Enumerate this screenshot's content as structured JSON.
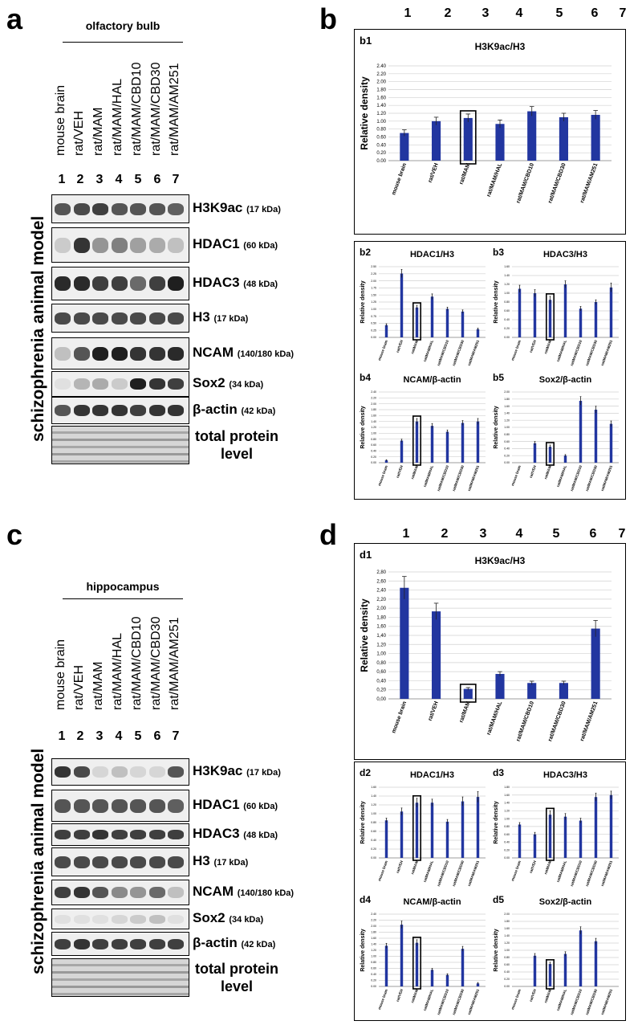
{
  "panels": {
    "a": "a",
    "b": "b",
    "c": "c",
    "d": "d"
  },
  "lane_numbers": [
    "1",
    "2",
    "3",
    "4",
    "5",
    "6",
    "7"
  ],
  "lane_labels": [
    "mouse brain",
    "rat/VEH",
    "rat/MAM",
    "rat/MAM/HAL",
    "rat/MAM/CBD10",
    "rat/MAM/CBD30",
    "rat/MAM/AM251"
  ],
  "side_label": "schizophrenia animal model",
  "top": {
    "tissue": "olfactory bulb"
  },
  "bottom": {
    "tissue": "hippocampus"
  },
  "blots": [
    {
      "name": "H3K9ac",
      "kda": "(17 kDa)"
    },
    {
      "name": "HDAC1",
      "kda": "(60 kDa)"
    },
    {
      "name": "HDAC3",
      "kda": "(48 kDa)"
    },
    {
      "name": "H3",
      "kda": "(17 kDa)"
    },
    {
      "name": "NCAM",
      "kda": "(140/180 kDa)"
    },
    {
      "name": "Sox2",
      "kda": "(34 kDa)"
    },
    {
      "name": "β-actin",
      "kda": "(42 kDa)"
    },
    {
      "name": "total protein",
      "kda": "level"
    }
  ],
  "band_intensity": {
    "top": [
      [
        0.7,
        0.75,
        0.8,
        0.7,
        0.7,
        0.7,
        0.65
      ],
      [
        0.15,
        0.85,
        0.4,
        0.5,
        0.35,
        0.3,
        0.2
      ],
      [
        0.9,
        0.9,
        0.8,
        0.8,
        0.6,
        0.8,
        0.95
      ],
      [
        0.75,
        0.75,
        0.75,
        0.75,
        0.75,
        0.75,
        0.75
      ],
      [
        0.2,
        0.7,
        0.95,
        0.95,
        0.85,
        0.85,
        0.9
      ],
      [
        0.05,
        0.25,
        0.3,
        0.15,
        0.95,
        0.85,
        0.8
      ],
      [
        0.7,
        0.85,
        0.85,
        0.85,
        0.8,
        0.85,
        0.85
      ],
      [
        0.45,
        0.45,
        0.45,
        0.45,
        0.45,
        0.45,
        0.45
      ]
    ],
    "bottom": [
      [
        0.85,
        0.75,
        0.1,
        0.2,
        0.1,
        0.1,
        0.7
      ],
      [
        0.7,
        0.7,
        0.7,
        0.7,
        0.7,
        0.7,
        0.65
      ],
      [
        0.8,
        0.8,
        0.85,
        0.8,
        0.8,
        0.8,
        0.8
      ],
      [
        0.75,
        0.75,
        0.75,
        0.75,
        0.75,
        0.75,
        0.75
      ],
      [
        0.8,
        0.85,
        0.7,
        0.45,
        0.4,
        0.6,
        0.2
      ],
      [
        0.05,
        0.05,
        0.05,
        0.1,
        0.15,
        0.2,
        0.05
      ],
      [
        0.8,
        0.85,
        0.8,
        0.8,
        0.8,
        0.8,
        0.8
      ],
      [
        0.4,
        0.4,
        0.4,
        0.4,
        0.4,
        0.4,
        0.4
      ]
    ]
  },
  "chart_data": [
    {
      "id": "b1",
      "type": "bar",
      "title": "H3K9ac/H3",
      "ylabel": "Relative density",
      "ylim": [
        0,
        2.4
      ],
      "yticks": [
        "0.00",
        "0.20",
        "0.40",
        "0.60",
        "0.80",
        "1.00",
        "1.20",
        "1.40",
        "1.60",
        "1.80",
        "2.00",
        "2.20",
        "2.40"
      ],
      "categories": [
        "mouse brain",
        "rat/VEH",
        "rat/MAM",
        "rat/MAM/HAL",
        "rat/MAM/CBD10",
        "rat/MAM/CBD30",
        "rat/MAM/AM251"
      ],
      "values": [
        0.7,
        1.0,
        1.08,
        0.93,
        1.25,
        1.1,
        1.16
      ],
      "errors": [
        0.08,
        0.1,
        0.1,
        0.1,
        0.12,
        0.1,
        0.11
      ],
      "highlight": 2
    },
    {
      "id": "b2",
      "type": "bar",
      "title": "HDAC1/H3",
      "ylabel": "Relative density",
      "ylim": [
        0,
        2.6
      ],
      "yticks": [
        "0.00",
        "0.25",
        "0.50",
        "0.75",
        "1.00",
        "1.25",
        "1.50",
        "1.75",
        "2.00",
        "2.25",
        "2.50"
      ],
      "categories": [
        "mouse brain",
        "rat/VEH",
        "rat/MAM",
        "rat/MAM/HAL",
        "rat/MAM/CBD10",
        "rat/MAM/CBD30",
        "rat/MAM/AM251"
      ],
      "values": [
        0.45,
        2.35,
        1.1,
        1.5,
        1.05,
        0.95,
        0.3
      ],
      "errors": [
        0.05,
        0.15,
        0.08,
        0.1,
        0.06,
        0.06,
        0.04
      ],
      "highlight": 2
    },
    {
      "id": "b3",
      "type": "bar",
      "title": "HDAC3/H3",
      "ylabel": "Relative density",
      "ylim": [
        0,
        1.6
      ],
      "yticks": [
        "0.00",
        "0.20",
        "0.40",
        "0.60",
        "0.80",
        "1.00",
        "1.20",
        "1.40",
        "1.60"
      ],
      "categories": [
        "mouse brain",
        "rat/VEH",
        "rat/MAM",
        "rat/MAM/HAL",
        "rat/MAM/CBD10",
        "rat/MAM/CBD30",
        "rat/MAM/AM251"
      ],
      "values": [
        1.1,
        1.0,
        0.85,
        1.2,
        0.65,
        0.8,
        1.13
      ],
      "errors": [
        0.08,
        0.08,
        0.08,
        0.08,
        0.05,
        0.05,
        0.1
      ],
      "highlight": 2
    },
    {
      "id": "b4",
      "type": "bar",
      "title": "NCAM/β-actin",
      "ylabel": "Relative density",
      "ylim": [
        0,
        2.4
      ],
      "yticks": [
        "0.00",
        "0.20",
        "0.40",
        "0.60",
        "0.80",
        "1.00",
        "1.20",
        "1.40",
        "1.60",
        "1.80",
        "2.00",
        "2.20",
        "2.40"
      ],
      "categories": [
        "mouse brain",
        "rat/VEH",
        "rat/MAM",
        "rat/MAM/HAL",
        "rat/MAM/CBD10",
        "rat/MAM/CBD30",
        "rat/MAM/AM251"
      ],
      "values": [
        0.08,
        0.75,
        1.4,
        1.25,
        1.05,
        1.35,
        1.4
      ],
      "errors": [
        0.02,
        0.05,
        0.1,
        0.08,
        0.06,
        0.08,
        0.1
      ],
      "highlight": 2
    },
    {
      "id": "b5",
      "type": "bar",
      "title": "Sox2/β-actin",
      "ylabel": "Relative density",
      "ylim": [
        0,
        2.0
      ],
      "yticks": [
        "0.00",
        "0.20",
        "0.40",
        "0.60",
        "0.80",
        "1.00",
        "1.20",
        "1.40",
        "1.60",
        "1.80",
        "2.00"
      ],
      "categories": [
        "mouse brain",
        "rat/VEH",
        "rat/MAM",
        "rat/MAM/HAL",
        "rat/MAM/CBD10",
        "rat/MAM/CBD30",
        "rat/MAM/AM251"
      ],
      "values": [
        0,
        0.55,
        0.45,
        0.2,
        1.75,
        1.5,
        1.1
      ],
      "errors": [
        0,
        0.05,
        0.05,
        0.03,
        0.12,
        0.1,
        0.08
      ],
      "highlight": 2
    },
    {
      "id": "d1",
      "type": "bar",
      "title": "H3K9ac/H3",
      "ylabel": "Relative density",
      "ylim": [
        0,
        2.8
      ],
      "yticks": [
        "0,00",
        "0,20",
        "0,40",
        "0,60",
        "0,80",
        "1,00",
        "1,20",
        "1,40",
        "1,60",
        "1,80",
        "2,00",
        "2,20",
        "2,40",
        "2,60",
        "2,80"
      ],
      "categories": [
        "mouse brain",
        "rat/VEH",
        "rat/MAM",
        "rat/MAM/HAL",
        "rat/MAM/CBD10",
        "rat/MAM/CBD30",
        "rat/MAM/AM251"
      ],
      "values": [
        2.45,
        1.93,
        0.22,
        0.55,
        0.35,
        0.35,
        1.55
      ],
      "errors": [
        0.25,
        0.18,
        0.03,
        0.05,
        0.04,
        0.04,
        0.18
      ],
      "highlight": 2
    },
    {
      "id": "d2",
      "type": "bar",
      "title": "HDAC1/H3",
      "ylabel": "Relative density",
      "ylim": [
        0,
        1.6
      ],
      "yticks": [
        "0.00",
        "0.20",
        "0.40",
        "0.60",
        "0.80",
        "1.00",
        "1.20",
        "1.40",
        "1.60"
      ],
      "categories": [
        "mouse brain",
        "rat/VEH",
        "rat/MAM",
        "rat/MAM/HAL",
        "rat/MAM/CBD10",
        "rat/MAM/CBD30",
        "rat/MAM/AM251"
      ],
      "values": [
        0.85,
        1.05,
        1.25,
        1.25,
        0.82,
        1.28,
        1.38
      ],
      "errors": [
        0.05,
        0.08,
        0.1,
        0.08,
        0.05,
        0.1,
        0.12
      ],
      "highlight": 2
    },
    {
      "id": "d3",
      "type": "bar",
      "title": "HDAC3/H3",
      "ylabel": "Relative density",
      "ylim": [
        0,
        1.8
      ],
      "yticks": [
        "0.00",
        "0.20",
        "0.40",
        "0.60",
        "0.80",
        "1.00",
        "1.20",
        "1.40",
        "1.60",
        "1.80"
      ],
      "categories": [
        "mouse brain",
        "rat/VEH",
        "rat/MAM",
        "rat/MAM/HAL",
        "rat/MAM/CBD10",
        "rat/MAM/CBD30",
        "rat/MAM/AM251"
      ],
      "values": [
        0.85,
        0.6,
        1.1,
        1.05,
        0.95,
        1.55,
        1.6
      ],
      "errors": [
        0.05,
        0.05,
        0.1,
        0.08,
        0.06,
        0.1,
        0.1
      ],
      "highlight": 2
    },
    {
      "id": "d4",
      "type": "bar",
      "title": "NCAM/β-actin",
      "ylabel": "Relative density",
      "ylim": [
        0,
        2.4
      ],
      "yticks": [
        "0.00",
        "0.20",
        "0.40",
        "0.60",
        "0.80",
        "1.00",
        "1.20",
        "1.40",
        "1.60",
        "1.80",
        "2.00",
        "2.20",
        "2.40"
      ],
      "categories": [
        "mouse brain",
        "rat/VEH",
        "rat/MAM",
        "rat/MAM/HAL",
        "rat/MAM/CBD10",
        "rat/MAM/CBD30",
        "rat/MAM/AM251"
      ],
      "values": [
        1.35,
        2.05,
        1.45,
        0.55,
        0.38,
        1.25,
        0.1
      ],
      "errors": [
        0.08,
        0.12,
        0.1,
        0.05,
        0.04,
        0.08,
        0.03
      ],
      "highlight": 2
    },
    {
      "id": "d5",
      "type": "bar",
      "title": "Sox2/β-actin",
      "ylabel": "Relative density",
      "ylim": [
        0,
        2.0
      ],
      "yticks": [
        "0.00",
        "0.20",
        "0.40",
        "0.60",
        "0.80",
        "1.00",
        "1.20",
        "1.40",
        "1.60",
        "1.80",
        "2.00"
      ],
      "categories": [
        "mouse brain",
        "rat/VEH",
        "rat/MAM",
        "rat/MAM/HAL",
        "rat/MAM/CBD10",
        "rat/MAM/CBD30",
        "rat/MAM/AM251"
      ],
      "values": [
        0,
        0.85,
        0.62,
        0.9,
        1.55,
        1.25,
        0
      ],
      "errors": [
        0,
        0.06,
        0.05,
        0.06,
        0.1,
        0.08,
        0
      ],
      "highlight": 2
    }
  ]
}
